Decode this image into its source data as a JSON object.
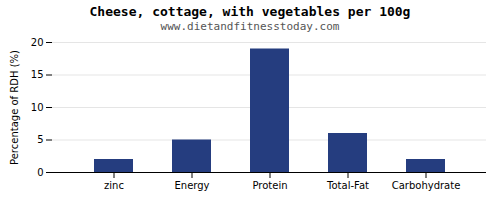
{
  "chart_data": {
    "type": "bar",
    "title": "Cheese, cottage, with vegetables per 100g",
    "subtitle": "www.dietandfitnesstoday.com",
    "categories": [
      "zinc",
      "Energy",
      "Protein",
      "Total-Fat",
      "Carbohydrate"
    ],
    "values": [
      2.0,
      5.0,
      19.0,
      6.0,
      2.0
    ],
    "color": "#253d7f",
    "ylabel": "Percentage of RDH (%)",
    "ylim": [
      0,
      20
    ],
    "yticks": [
      0,
      5,
      10,
      15,
      20
    ],
    "grid": true
  }
}
